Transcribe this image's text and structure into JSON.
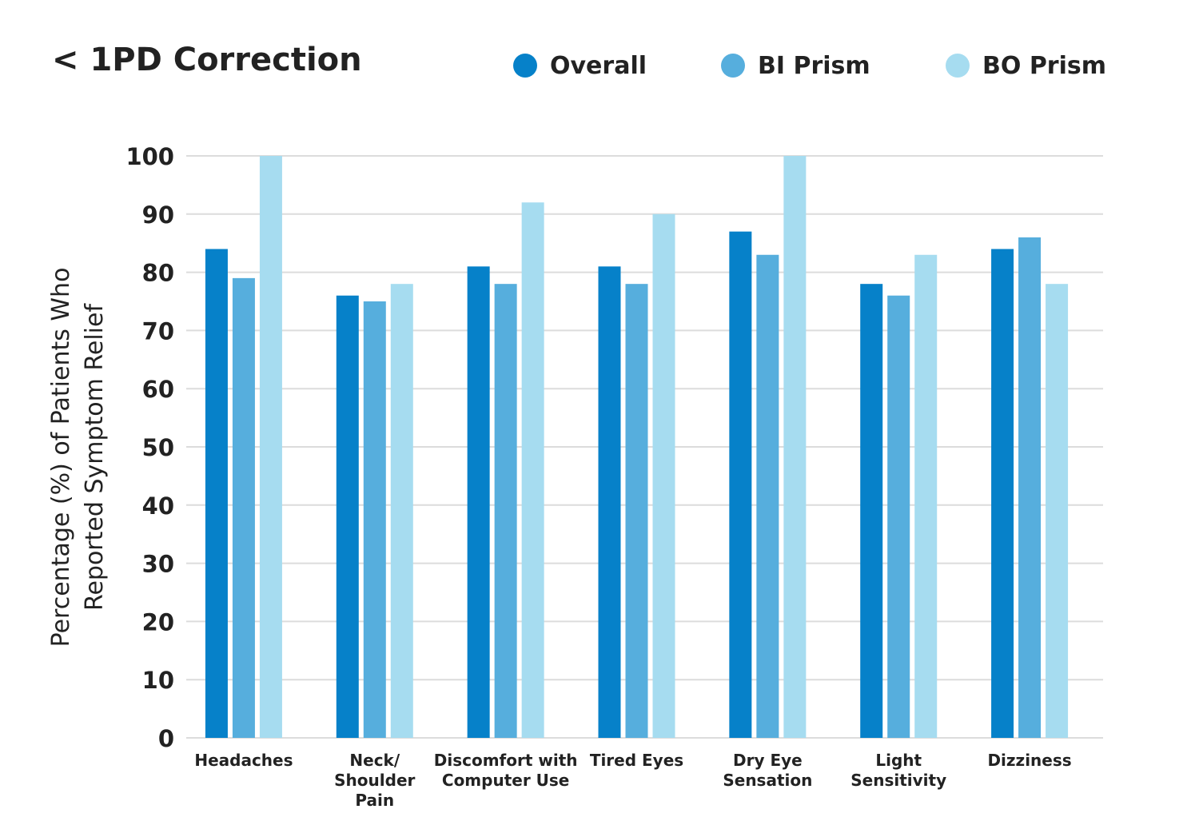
{
  "title": "< 1PD Correction",
  "chart_data": {
    "type": "bar",
    "title": "< 1PD Correction",
    "ylabel_lines": [
      "Percentage (%) of Patients Who",
      "Reported Symptom Relief"
    ],
    "xlabel": "",
    "ylim": [
      0,
      100
    ],
    "yticks": [
      0,
      10,
      20,
      30,
      40,
      50,
      60,
      70,
      80,
      90,
      100
    ],
    "grid": true,
    "legend_position": "top-right",
    "categories": [
      [
        "Headaches"
      ],
      [
        "Neck/",
        "Shoulder",
        "Pain"
      ],
      [
        "Discomfort with",
        "Computer Use"
      ],
      [
        "Tired Eyes"
      ],
      [
        "Dry Eye",
        "Sensation"
      ],
      [
        "Light",
        "Sensitivity"
      ],
      [
        "Dizziness"
      ]
    ],
    "series": [
      {
        "name": "Overall",
        "color": "#0681c9",
        "values": [
          84,
          76,
          81,
          81,
          87,
          78,
          84
        ]
      },
      {
        "name": "BI Prism",
        "color": "#56aedd",
        "values": [
          79,
          75,
          78,
          78,
          83,
          76,
          86
        ]
      },
      {
        "name": "BO Prism",
        "color": "#a6dcf0",
        "values": [
          100,
          78,
          92,
          90,
          100,
          83,
          78
        ]
      }
    ]
  }
}
